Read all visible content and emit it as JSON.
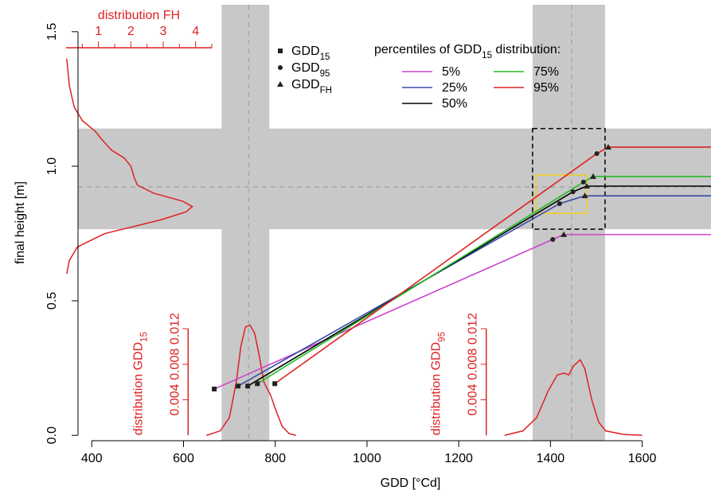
{
  "chart_data": {
    "type": "line",
    "xlabel": "GDD [°Cd]",
    "ylabel": "final height [m]",
    "xlim": [
      370,
      1750
    ],
    "ylim": [
      -0.02,
      1.6
    ],
    "xticks": [
      400,
      600,
      800,
      1000,
      1200,
      1400,
      1600
    ],
    "yticks": [
      {
        "value": 0,
        "label": "0.0"
      },
      0.5,
      {
        "value": 1,
        "label": "1.0"
      },
      1.5
    ],
    "bands": {
      "gdd15": [
        683,
        787
      ],
      "gdd15_center": 742,
      "gdd95": [
        1361,
        1519
      ],
      "gdd95_center": 1446,
      "fh": [
        0.766,
        1.14
      ],
      "fh_center": 0.923
    },
    "highlight_box": {
      "x": [
        1368,
        1479
      ],
      "y": [
        0.825,
        0.967
      ]
    },
    "marker_legend": [
      {
        "text": "GDD",
        "sub": "15"
      },
      {
        "text": "GDD",
        "sub": "95"
      },
      {
        "text": "GDD",
        "sub": "FH"
      }
    ],
    "legend_title": {
      "text": "percentiles of GDD",
      "sub": "15",
      "after": " distribution:"
    },
    "series": [
      {
        "name": "5%",
        "color": "#cc44cc",
        "x": [
          667,
          1405,
          1429
        ],
        "values": [
          0.172,
          0.728,
          0.746
        ]
      },
      {
        "name": "25%",
        "color": "#3a4ca8",
        "x": [
          719,
          1420,
          1475
        ],
        "values": [
          0.183,
          0.861,
          0.89
        ]
      },
      {
        "name": "50%",
        "color": "#000000",
        "x": [
          740,
          1449,
          1479
        ],
        "values": [
          0.183,
          0.905,
          0.926
        ]
      },
      {
        "name": "75%",
        "color": "#22bb22",
        "x": [
          761,
          1472,
          1493
        ],
        "values": [
          0.192,
          0.941,
          0.962
        ]
      },
      {
        "name": "95%",
        "color": "#dd2222",
        "x": [
          799,
          1501,
          1526
        ],
        "values": [
          0.192,
          1.047,
          1.071
        ]
      }
    ],
    "fh_density": {
      "label": "distribution FH",
      "color": "#dd2222",
      "xlim": [
        0,
        4.5
      ],
      "xticks": [
        1,
        2,
        3,
        4
      ],
      "minor_ticks": [
        0.5,
        1.5,
        2.5,
        3.5,
        4.5
      ],
      "y": [
        0.6,
        0.65,
        0.7,
        0.75,
        0.8,
        0.83,
        0.85,
        0.87,
        0.9,
        0.93,
        0.96,
        1.0,
        1.03,
        1.06,
        1.1,
        1.13,
        1.17,
        1.22,
        1.3,
        1.4
      ],
      "density": [
        0.02,
        0.1,
        0.35,
        1.2,
        2.9,
        3.7,
        3.9,
        3.6,
        2.7,
        2.2,
        2.1,
        2.0,
        1.8,
        1.4,
        1.1,
        0.9,
        0.5,
        0.25,
        0.1,
        0.02
      ]
    },
    "gdd15_density": {
      "label": {
        "text": "distribution GDD",
        "sub": "15"
      },
      "color": "#dd2222",
      "ylim": [
        0,
        0.012
      ],
      "yticks": [
        0.004,
        0.008,
        0.012
      ],
      "x": [
        650,
        680,
        700,
        715,
        725,
        735,
        745,
        755,
        765,
        775,
        790,
        800,
        815,
        830,
        845
      ],
      "density": [
        0,
        0.0005,
        0.002,
        0.006,
        0.01,
        0.0122,
        0.0124,
        0.0115,
        0.009,
        0.006,
        0.0045,
        0.003,
        0.001,
        0.0002,
        0
      ]
    },
    "gdd95_density": {
      "label": {
        "text": "distribution GDD",
        "sub": "95"
      },
      "color": "#dd2222",
      "ylim": [
        0,
        0.012
      ],
      "yticks": [
        0.004,
        0.008,
        0.012
      ],
      "x": [
        1300,
        1340,
        1370,
        1395,
        1415,
        1430,
        1440,
        1450,
        1465,
        1475,
        1490,
        1505,
        1520,
        1560,
        1600
      ],
      "density": [
        0,
        0.0005,
        0.002,
        0.005,
        0.0068,
        0.007,
        0.0068,
        0.0078,
        0.0085,
        0.0075,
        0.004,
        0.0015,
        0.0005,
        0.0001,
        0
      ]
    }
  }
}
